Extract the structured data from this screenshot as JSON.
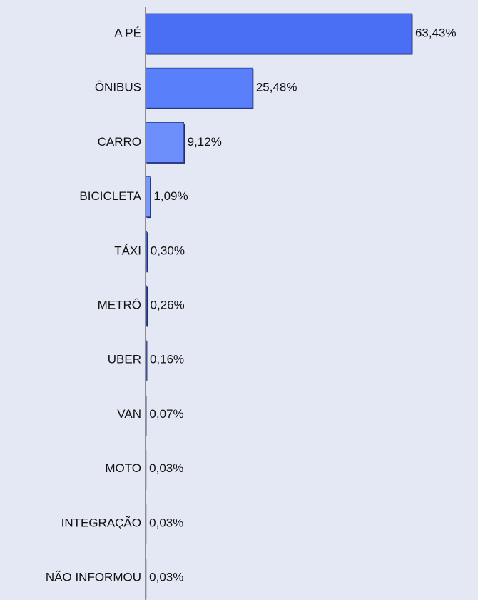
{
  "chart_data": {
    "type": "bar",
    "orientation": "horizontal",
    "categories": [
      "A PÉ",
      "ÔNIBUS",
      "CARRO",
      "BICICLETA",
      "TÁXI",
      "METRÔ",
      "UBER",
      "VAN",
      "MOTO",
      "INTEGRAÇÃO",
      "NÃO INFORMOU"
    ],
    "values": [
      63.43,
      25.48,
      9.12,
      1.09,
      0.3,
      0.26,
      0.16,
      0.07,
      0.03,
      0.03,
      0.03
    ],
    "value_labels": [
      "63,43%",
      "25,48%",
      "9,12%",
      "1,09%",
      "0,30%",
      "0,26%",
      "0,16%",
      "0,07%",
      "0,03%",
      "0,03%",
      "0,03%"
    ],
    "colors": [
      "#4a6ff5",
      "#5a7ffa",
      "#6d8ffc",
      "#7898fc",
      "#7898fc",
      "#7898fc",
      "#7898fc",
      "#7898fc",
      "#7898fc",
      "#7898fc",
      "#7898fc"
    ]
  }
}
